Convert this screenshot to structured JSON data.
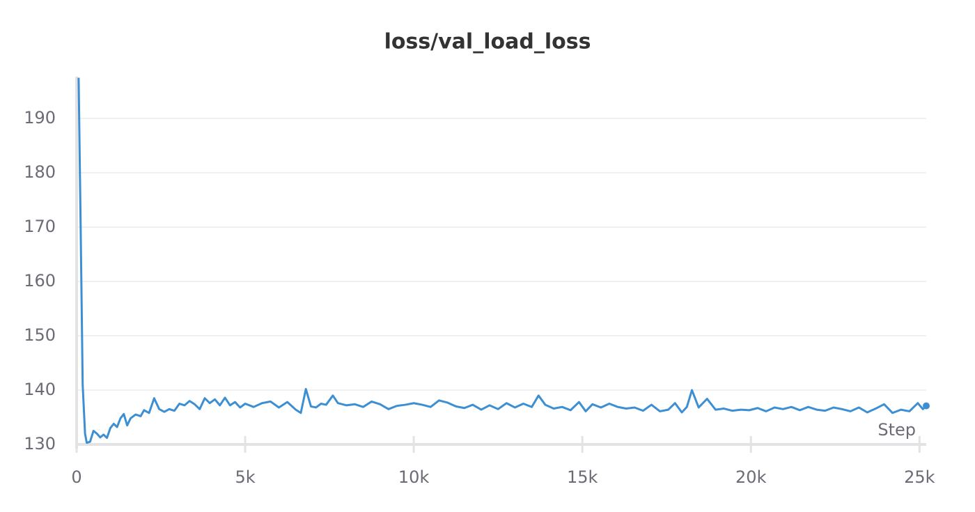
{
  "chart_data": {
    "type": "line",
    "title": "loss/val_load_loss",
    "x_label": "Step",
    "xlim": [
      0,
      25200
    ],
    "ylim": [
      130,
      197.7
    ],
    "xticks": [
      0,
      {
        "value": 5000,
        "label": "5k"
      },
      {
        "value": 10000,
        "label": "10k"
      },
      {
        "value": 15000,
        "label": "15k"
      },
      {
        "value": 20000,
        "label": "20k"
      },
      {
        "value": 25000,
        "label": "25k"
      }
    ],
    "yticks": [
      130,
      140,
      150,
      160,
      170,
      180,
      190
    ],
    "grid": true,
    "series": [
      {
        "name": "val_load_loss",
        "color": "#3d8fd3",
        "x": [
          60,
          120,
          180,
          250,
          300,
          400,
          500,
          600,
          700,
          800,
          900,
          1000,
          1100,
          1200,
          1300,
          1400,
          1500,
          1600,
          1750,
          1900,
          2000,
          2150,
          2300,
          2450,
          2600,
          2750,
          2900,
          3050,
          3200,
          3350,
          3500,
          3650,
          3800,
          3950,
          4100,
          4250,
          4400,
          4550,
          4700,
          4850,
          5000,
          5250,
          5500,
          5750,
          6000,
          6250,
          6500,
          6650,
          6800,
          6950,
          7100,
          7250,
          7400,
          7600,
          7750,
          8000,
          8250,
          8500,
          8750,
          9000,
          9250,
          9500,
          9750,
          10000,
          10250,
          10500,
          10750,
          11000,
          11250,
          11500,
          11750,
          12000,
          12250,
          12500,
          12750,
          13000,
          13250,
          13500,
          13700,
          13900,
          14150,
          14400,
          14650,
          14900,
          15100,
          15300,
          15550,
          15800,
          16050,
          16300,
          16550,
          16800,
          17050,
          17300,
          17550,
          17750,
          17950,
          18100,
          18250,
          18450,
          18700,
          18950,
          19200,
          19450,
          19700,
          19950,
          20200,
          20450,
          20700,
          20950,
          21200,
          21450,
          21700,
          21950,
          22200,
          22450,
          22700,
          22950,
          23200,
          23450,
          23700,
          23950,
          24200,
          24450,
          24700,
          24950,
          25100,
          25200
        ],
        "values": [
          197.5,
          170,
          141,
          132,
          130.3,
          130.5,
          132.5,
          132,
          131.3,
          131.8,
          131.2,
          133,
          133.8,
          133.2,
          134.8,
          135.6,
          133.5,
          134.8,
          135.5,
          135.2,
          136.3,
          135.8,
          138.5,
          136.5,
          136,
          136.5,
          136.2,
          137.5,
          137.2,
          138,
          137.4,
          136.5,
          138.5,
          137.6,
          138.3,
          137.2,
          138.6,
          137.2,
          137.8,
          136.8,
          137.5,
          136.9,
          137.6,
          137.9,
          136.8,
          137.8,
          136.4,
          135.8,
          140.2,
          137,
          136.8,
          137.5,
          137.3,
          139,
          137.6,
          137.2,
          137.4,
          136.9,
          137.9,
          137.4,
          136.5,
          137.1,
          137.3,
          137.6,
          137.3,
          136.9,
          138.1,
          137.7,
          137,
          136.7,
          137.3,
          136.4,
          137.2,
          136.5,
          137.6,
          136.8,
          137.5,
          136.9,
          139,
          137.3,
          136.6,
          136.9,
          136.3,
          137.8,
          136.1,
          137.4,
          136.8,
          137.5,
          136.9,
          136.6,
          136.8,
          136.2,
          137.3,
          136.1,
          136.4,
          137.6,
          135.9,
          136.9,
          140,
          136.8,
          138.4,
          136.4,
          136.6,
          136.2,
          136.4,
          136.3,
          136.7,
          136.1,
          136.8,
          136.5,
          136.9,
          136.3,
          136.9,
          136.4,
          136.2,
          136.8,
          136.5,
          136.1,
          136.8,
          135.9,
          136.6,
          137.4,
          135.8,
          136.4,
          136.1,
          137.6,
          136.5,
          137.1
        ]
      }
    ]
  }
}
